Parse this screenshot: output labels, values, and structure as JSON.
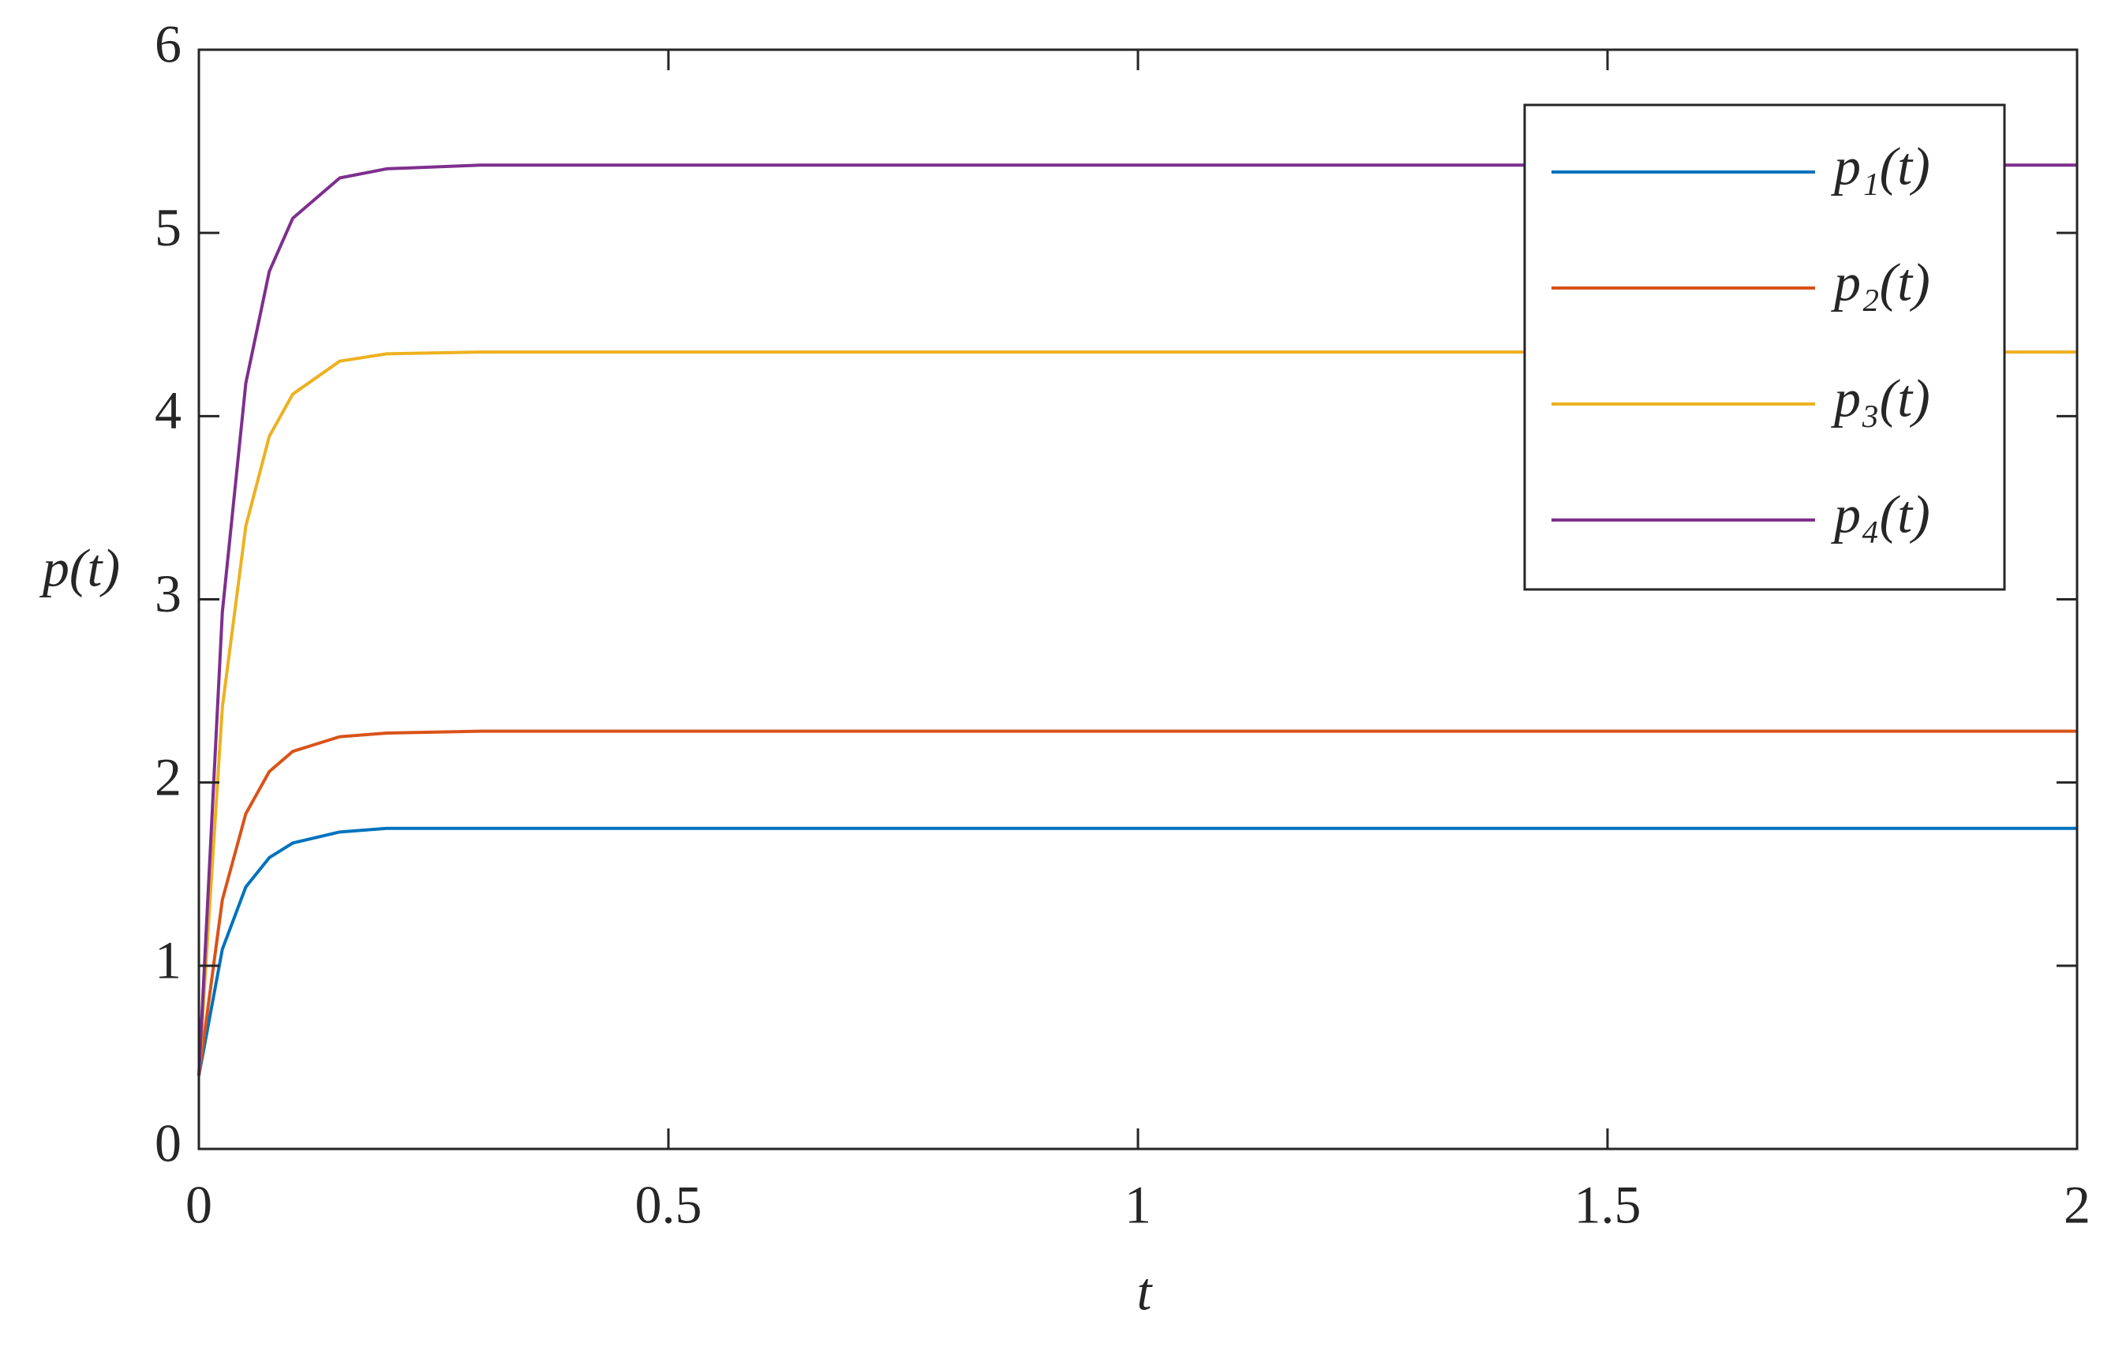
{
  "chart_data": {
    "type": "line",
    "xlabel": "t",
    "ylabel": "p(t)",
    "x": [
      0,
      0.025,
      0.05,
      0.075,
      0.1,
      0.15,
      0.2,
      0.3,
      0.5,
      1,
      1.5,
      2
    ],
    "series": [
      {
        "name": "p₁(t)",
        "color": "#0072BD",
        "values": [
          0.4,
          1.09,
          1.43,
          1.59,
          1.67,
          1.73,
          1.75,
          1.75,
          1.75,
          1.75,
          1.75,
          1.75
        ]
      },
      {
        "name": "p₂(t)",
        "color": "#D95319",
        "values": [
          0.4,
          1.36,
          1.83,
          2.06,
          2.17,
          2.25,
          2.27,
          2.28,
          2.28,
          2.28,
          2.28,
          2.28
        ]
      },
      {
        "name": "p₃(t)",
        "color": "#EDB120",
        "values": [
          0.4,
          2.41,
          3.4,
          3.89,
          4.12,
          4.3,
          4.34,
          4.35,
          4.35,
          4.35,
          4.35,
          4.35
        ]
      },
      {
        "name": "p₄(t)",
        "color": "#7E2F8E",
        "values": [
          0.4,
          2.93,
          4.18,
          4.79,
          5.08,
          5.3,
          5.35,
          5.37,
          5.37,
          5.37,
          5.37,
          5.37
        ]
      }
    ],
    "xlim": [
      0,
      2
    ],
    "ylim": [
      0,
      6
    ],
    "xticks": [
      0,
      0.5,
      1,
      1.5,
      2
    ],
    "yticks": [
      0,
      1,
      2,
      3,
      4,
      5,
      6
    ],
    "grid": false,
    "legend": "northeast"
  }
}
